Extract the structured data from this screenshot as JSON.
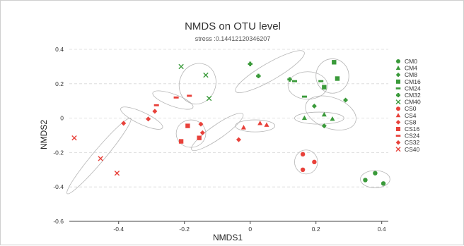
{
  "chart_data": {
    "type": "scatter",
    "title": "NMDS on OTU level",
    "subtitle": "stress :0.14412120346207",
    "xlabel": "NMDS1",
    "ylabel": "NMDS2",
    "xlim": [
      -0.55,
      0.42
    ],
    "ylim": [
      -0.6,
      0.4
    ],
    "xticks": [
      -0.4,
      -0.2,
      0,
      0.2,
      0.4
    ],
    "yticks": [
      -0.6,
      -0.4,
      -0.2,
      0,
      0.2,
      0.4
    ],
    "xtick_labels": [
      "-0.4",
      "-0.2",
      "0",
      "0.2",
      "0.4"
    ],
    "ytick_labels": [
      "-0.6",
      "-0.4",
      "-0.2",
      "0",
      "0.2",
      "0.4"
    ],
    "grid": "horizontal dashed",
    "legend_position": "right",
    "colors": {
      "CM": "#3a9a3a",
      "CS": "#e8413a",
      "ellipse": "#b5b5b5"
    },
    "series": [
      {
        "name": "CM0",
        "group": "CM",
        "marker": "circle",
        "points": [
          [
            0.35,
            -0.36
          ],
          [
            0.38,
            -0.32
          ],
          [
            0.405,
            -0.38
          ]
        ]
      },
      {
        "name": "CM4",
        "group": "CM",
        "marker": "triangle",
        "points": [
          [
            0.165,
            0.0
          ],
          [
            0.225,
            0.02
          ],
          [
            0.25,
            -0.005
          ]
        ]
      },
      {
        "name": "CM8",
        "group": "CM",
        "marker": "diamond",
        "points": [
          [
            0.195,
            0.07
          ],
          [
            0.225,
            -0.045
          ],
          [
            0.29,
            0.105
          ]
        ]
      },
      {
        "name": "CM16",
        "group": "CM",
        "marker": "square",
        "points": [
          [
            0.225,
            0.18
          ],
          [
            0.255,
            0.325
          ],
          [
            0.265,
            0.23
          ]
        ]
      },
      {
        "name": "CM24",
        "group": "CM",
        "marker": "dash",
        "points": [
          [
            0.135,
            0.215
          ],
          [
            0.165,
            0.125
          ],
          [
            0.215,
            0.215
          ]
        ]
      },
      {
        "name": "CM32",
        "group": "CM",
        "marker": "plus",
        "points": [
          [
            0.0,
            0.315
          ],
          [
            0.025,
            0.245
          ],
          [
            0.12,
            0.225
          ]
        ]
      },
      {
        "name": "CM40",
        "group": "CM",
        "marker": "cross",
        "points": [
          [
            -0.21,
            0.3
          ],
          [
            -0.135,
            0.25
          ],
          [
            -0.125,
            0.115
          ]
        ]
      },
      {
        "name": "CS0",
        "group": "CS",
        "marker": "circle",
        "points": [
          [
            0.16,
            -0.21
          ],
          [
            0.16,
            -0.3
          ],
          [
            0.195,
            -0.255
          ]
        ]
      },
      {
        "name": "CS4",
        "group": "CS",
        "marker": "triangle",
        "points": [
          [
            -0.02,
            -0.055
          ],
          [
            0.03,
            -0.03
          ],
          [
            0.05,
            -0.04
          ]
        ]
      },
      {
        "name": "CS8",
        "group": "CS",
        "marker": "diamond",
        "points": [
          [
            -0.15,
            -0.035
          ],
          [
            -0.145,
            -0.085
          ],
          [
            -0.035,
            -0.125
          ]
        ]
      },
      {
        "name": "CS16",
        "group": "CS",
        "marker": "square",
        "points": [
          [
            -0.21,
            -0.135
          ],
          [
            -0.19,
            -0.045
          ],
          [
            -0.155,
            -0.115
          ]
        ]
      },
      {
        "name": "CS24",
        "group": "CS",
        "marker": "dash",
        "points": [
          [
            -0.285,
            0.075
          ],
          [
            -0.225,
            0.12
          ],
          [
            -0.185,
            0.13
          ]
        ]
      },
      {
        "name": "CS32",
        "group": "CS",
        "marker": "diamond",
        "points": [
          [
            -0.385,
            -0.03
          ],
          [
            -0.31,
            -0.005
          ],
          [
            -0.29,
            0.04
          ]
        ]
      },
      {
        "name": "CS40",
        "group": "CS",
        "marker": "cross",
        "points": [
          [
            -0.535,
            -0.115
          ],
          [
            -0.455,
            -0.235
          ],
          [
            -0.405,
            -0.32
          ]
        ]
      }
    ],
    "ellipses": [
      {
        "group": "CM0",
        "center": [
          0.38,
          -0.355
        ],
        "rx": 0.045,
        "ry": 0.05,
        "angle": 0
      },
      {
        "group": "CM4",
        "center": [
          0.21,
          0.0
        ],
        "rx": 0.075,
        "ry": 0.035,
        "angle": 0
      },
      {
        "group": "CM8",
        "center": [
          0.245,
          0.03
        ],
        "rx": 0.08,
        "ry": 0.09,
        "angle": 20
      },
      {
        "group": "CM16",
        "center": [
          0.25,
          0.245
        ],
        "rx": 0.05,
        "ry": 0.1,
        "angle": 0
      },
      {
        "group": "CM24",
        "center": [
          0.175,
          0.19
        ],
        "rx": 0.06,
        "ry": 0.08,
        "angle": 0
      },
      {
        "group": "CM32",
        "center": [
          0.06,
          0.27
        ],
        "rx": 0.12,
        "ry": 0.05,
        "angle": -30
      },
      {
        "group": "CM40",
        "center": [
          -0.16,
          0.2
        ],
        "rx": 0.055,
        "ry": 0.12,
        "angle": 20
      },
      {
        "group": "CS0",
        "center": [
          0.17,
          -0.255
        ],
        "rx": 0.035,
        "ry": 0.07,
        "angle": 0
      },
      {
        "group": "CS4",
        "center": [
          0.015,
          -0.045
        ],
        "rx": 0.06,
        "ry": 0.035,
        "angle": 0
      },
      {
        "group": "CS8",
        "center": [
          -0.1,
          -0.08
        ],
        "rx": 0.095,
        "ry": 0.04,
        "angle": -35
      },
      {
        "group": "CS16",
        "center": [
          -0.18,
          -0.09
        ],
        "rx": 0.045,
        "ry": 0.08,
        "angle": 0
      },
      {
        "group": "CS24",
        "center": [
          -0.235,
          0.105
        ],
        "rx": 0.065,
        "ry": 0.035,
        "angle": 20
      },
      {
        "group": "CS32",
        "center": [
          -0.33,
          0.0
        ],
        "rx": 0.07,
        "ry": 0.035,
        "angle": 25
      },
      {
        "group": "CS40",
        "center": [
          -0.46,
          -0.22
        ],
        "rx": 0.15,
        "ry": 0.035,
        "angle": -50
      }
    ]
  }
}
